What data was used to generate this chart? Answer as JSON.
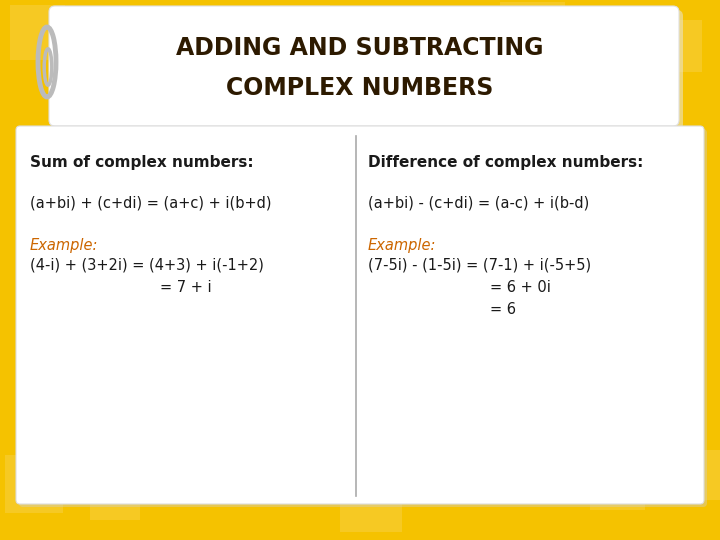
{
  "title_line1": "ADDING AND SUBTRACTING",
  "title_line2": "COMPLEX NUMBERS",
  "background_color": "#F5C200",
  "title_bg_color": "#FFFFFF",
  "content_bg_color": "#FFFFFF",
  "title_text_color": "#2d1a00",
  "header_text_color": "#1a1a1a",
  "formula_text_color": "#1a1a1a",
  "example_label_color": "#CC6600",
  "example_text_color": "#1a1a1a",
  "left_header": "Sum of complex numbers:",
  "left_formula": "(a+bi) + (c+di) = (a+c) + i(b+d)",
  "left_example_label": "Example:",
  "left_example_line1": "(4-i) + (3+2i) = (4+3) + i(-1+2)",
  "left_example_line2": "= 7 + i",
  "right_header": "Difference of complex numbers:",
  "right_formula": "(a+bi) - (c+di) = (a-c) + i(b-d)",
  "right_example_label": "Example:",
  "right_example_line1": "(7-5i) - (1-5i) = (7-1) + i(-5+5)",
  "right_example_line2": "= 6 + 0i",
  "right_example_line3": "= 6",
  "divider_color": "#AAAAAA",
  "clip_color": "#BBBBBB",
  "light_yellow": "#F7D040"
}
